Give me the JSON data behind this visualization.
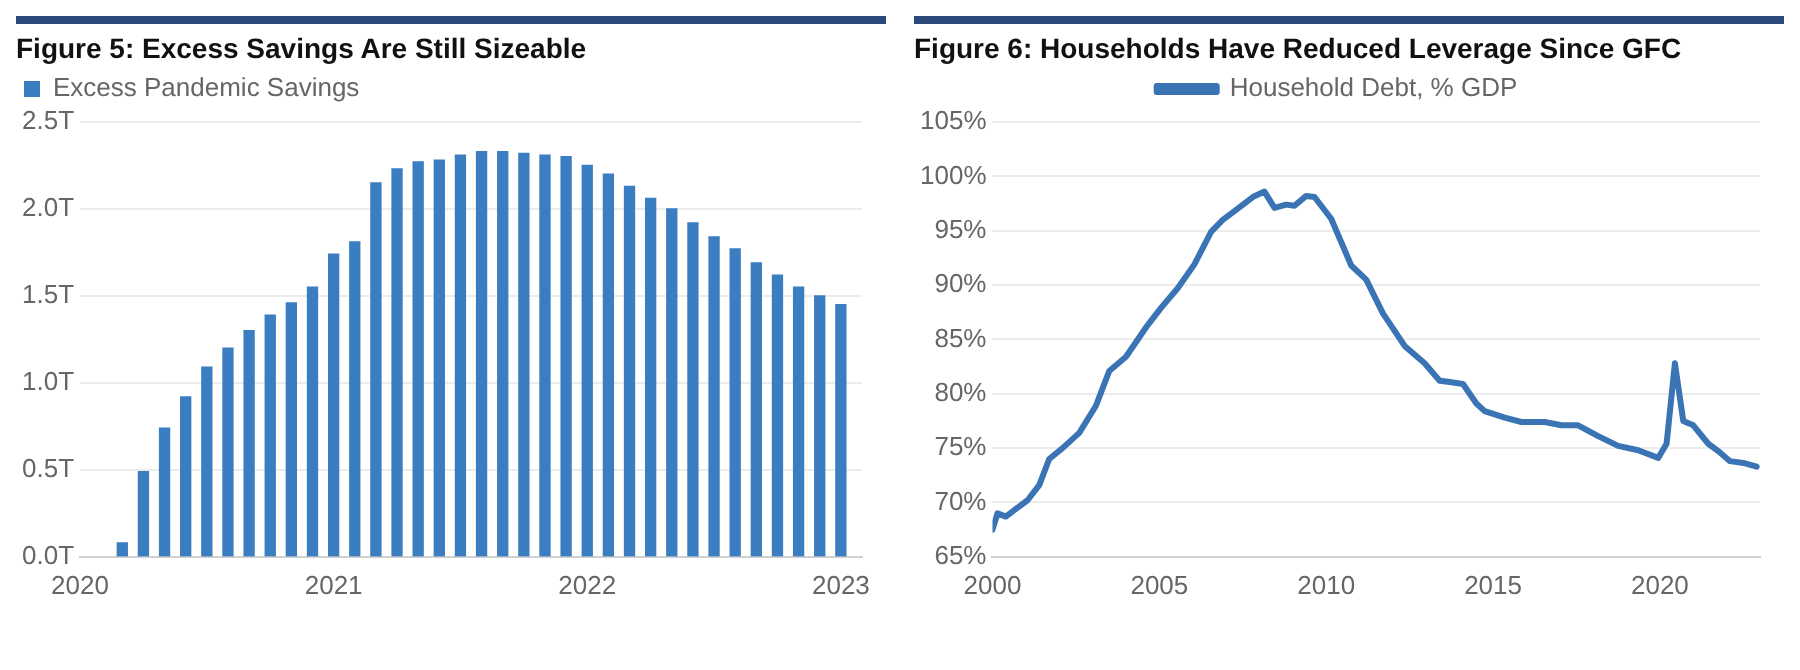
{
  "chart_data": [
    {
      "type": "bar",
      "title": "Figure 5: Excess Savings Are Still Sizeable",
      "x": [
        "2020-03",
        "2020-04",
        "2020-05",
        "2020-06",
        "2020-07",
        "2020-08",
        "2020-09",
        "2020-10",
        "2020-11",
        "2020-12",
        "2021-01",
        "2021-02",
        "2021-03",
        "2021-04",
        "2021-05",
        "2021-06",
        "2021-07",
        "2021-08",
        "2021-09",
        "2021-10",
        "2021-11",
        "2021-12",
        "2022-01",
        "2022-02",
        "2022-03",
        "2022-04",
        "2022-05",
        "2022-06",
        "2022-07",
        "2022-08",
        "2022-09",
        "2022-10",
        "2022-11",
        "2022-12",
        "2023-01"
      ],
      "series": [
        {
          "name": "Excess Pandemic Savings",
          "color": "#3a7dc0",
          "values": [
            0.08,
            0.49,
            0.74,
            0.92,
            1.09,
            1.2,
            1.3,
            1.39,
            1.46,
            1.55,
            1.74,
            1.81,
            2.15,
            2.23,
            2.27,
            2.28,
            2.31,
            2.33,
            2.33,
            2.32,
            2.31,
            2.3,
            2.25,
            2.2,
            2.13,
            2.06,
            2.0,
            1.92,
            1.84,
            1.77,
            1.69,
            1.62,
            1.55,
            1.5,
            1.45
          ]
        }
      ],
      "xlim": [
        "2020-01",
        "2023-02"
      ],
      "xticks": [
        "2020",
        "2021",
        "2022",
        "2023"
      ],
      "ylim": [
        0,
        2.5
      ],
      "yticks": [
        {
          "value": 0,
          "label": "0.0T"
        },
        {
          "value": 0.5,
          "label": "0.5T"
        },
        {
          "value": 1,
          "label": "1.0T"
        },
        {
          "value": 1.5,
          "label": "1.5T"
        },
        {
          "value": 2,
          "label": "2.0T"
        },
        {
          "value": 2.5,
          "label": "2.5T"
        }
      ],
      "grid": "y",
      "legend": "top left"
    },
    {
      "type": "line",
      "title": "Figure 6: Households Have Reduced Leverage Since GFC",
      "x": [
        2000,
        2000.15,
        2000.4,
        2000.7,
        2001.05,
        2001.4,
        2001.7,
        2002.1,
        2002.6,
        2003.1,
        2003.5,
        2004.0,
        2004.6,
        2005.05,
        2005.55,
        2006.05,
        2006.55,
        2006.9,
        2007.25,
        2007.8,
        2008.15,
        2008.45,
        2008.8,
        2009.05,
        2009.4,
        2009.65,
        2010.15,
        2010.75,
        2011.2,
        2011.7,
        2012.35,
        2012.95,
        2013.4,
        2013.65,
        2014.1,
        2014.5,
        2014.75,
        2015.35,
        2015.85,
        2016.55,
        2017.05,
        2017.55,
        2018.15,
        2018.75,
        2019.35,
        2019.95,
        2020.2,
        2020.45,
        2020.7,
        2021.0,
        2021.45,
        2021.8,
        2022.1,
        2022.55,
        2022.9
      ],
      "series": [
        {
          "name": "Household Debt, % GDP",
          "color": "#3a74b4",
          "values": [
            67.5,
            69.0,
            68.7,
            69.4,
            70.2,
            71.6,
            74.0,
            75.0,
            76.4,
            78.9,
            82.1,
            83.4,
            86.1,
            87.9,
            89.7,
            91.9,
            94.9,
            96.0,
            96.8,
            98.1,
            98.6,
            97.1,
            97.4,
            97.3,
            98.2,
            98.1,
            96.1,
            91.8,
            90.5,
            87.4,
            84.4,
            82.8,
            81.2,
            81.1,
            80.9,
            79.1,
            78.4,
            77.8,
            77.4,
            77.4,
            77.1,
            77.1,
            76.1,
            75.2,
            74.8,
            74.1,
            75.4,
            82.8,
            77.5,
            77.1,
            75.4,
            74.6,
            73.8,
            73.6,
            73.3
          ]
        }
      ],
      "xlim": [
        2000,
        2023
      ],
      "xticks": [
        2000,
        2005,
        2010,
        2015,
        2020
      ],
      "ylim": [
        65,
        105
      ],
      "yticks": [
        {
          "value": 65,
          "label": "65%"
        },
        {
          "value": 70,
          "label": "70%"
        },
        {
          "value": 75,
          "label": "75%"
        },
        {
          "value": 80,
          "label": "80%"
        },
        {
          "value": 85,
          "label": "85%"
        },
        {
          "value": 90,
          "label": "90%"
        },
        {
          "value": 95,
          "label": "95%"
        },
        {
          "value": 100,
          "label": "100%"
        },
        {
          "value": 105,
          "label": "105%"
        }
      ],
      "grid": "y",
      "legend": "top",
      "line_style": "solid",
      "marker": "none"
    }
  ]
}
